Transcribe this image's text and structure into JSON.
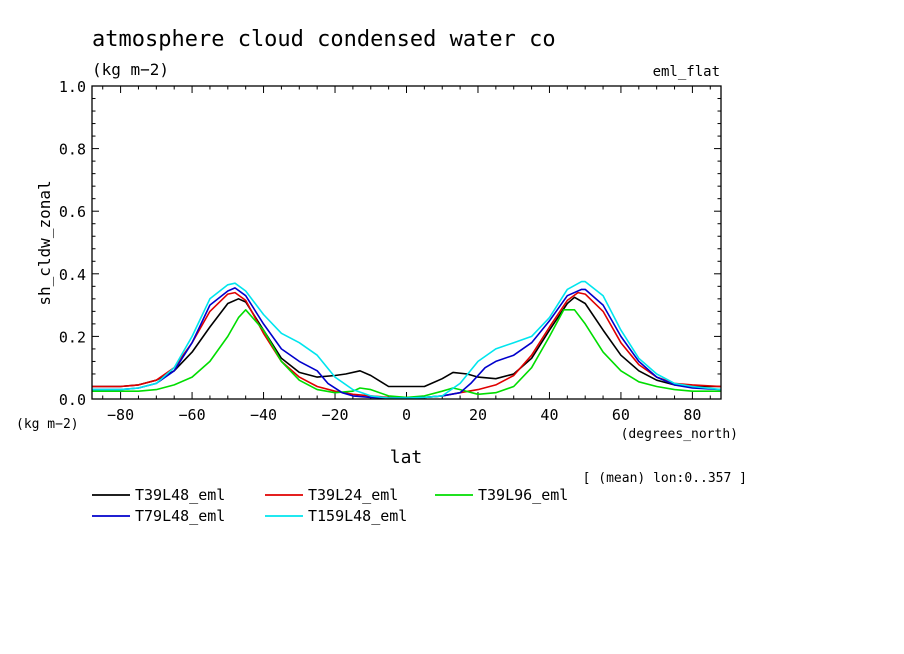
{
  "header": {
    "title": "atmosphere cloud condensed water co",
    "units": "(kg m−2)",
    "tag": "eml_flat",
    "y_units": "(kg m−2)",
    "x_units": "(degrees_north)",
    "footnote": "[ (mean) lon:0..357 ]"
  },
  "chart_data": {
    "type": "line",
    "title": "atmosphere cloud condensed water co",
    "xlabel": "lat",
    "ylabel": "sh_cldw_zonal",
    "xlim": [
      -88,
      88
    ],
    "ylim": [
      0,
      1.0
    ],
    "xticks": [
      -80,
      -60,
      -40,
      -20,
      0,
      20,
      40,
      60,
      80
    ],
    "yticks": [
      0.0,
      0.2,
      0.4,
      0.6,
      0.8,
      1.0
    ],
    "xtick_labels": [
      "−80",
      "−60",
      "−40",
      "−20",
      "0",
      "20",
      "40",
      "60",
      "80"
    ],
    "ytick_labels": [
      "0.0",
      "0.2",
      "0.4",
      "0.6",
      "0.8",
      "1.0"
    ],
    "grid": false,
    "legend_position": "bottom-left",
    "series": [
      {
        "name": "T39L48_eml",
        "color": "#000000",
        "x": [
          -88,
          -80,
          -75,
          -70,
          -65,
          -60,
          -55,
          -50,
          -47,
          -45,
          -40,
          -35,
          -30,
          -25,
          -20,
          -17,
          -13,
          -10,
          -5,
          0,
          5,
          10,
          13,
          17,
          20,
          25,
          30,
          35,
          40,
          45,
          47,
          50,
          55,
          60,
          65,
          70,
          75,
          80,
          88
        ],
        "y": [
          0.04,
          0.04,
          0.045,
          0.06,
          0.09,
          0.15,
          0.23,
          0.305,
          0.32,
          0.31,
          0.22,
          0.13,
          0.085,
          0.07,
          0.075,
          0.08,
          0.09,
          0.075,
          0.04,
          0.04,
          0.04,
          0.065,
          0.085,
          0.08,
          0.07,
          0.065,
          0.08,
          0.13,
          0.22,
          0.305,
          0.325,
          0.305,
          0.22,
          0.14,
          0.09,
          0.06,
          0.045,
          0.04,
          0.04
        ]
      },
      {
        "name": "T39L24_eml",
        "color": "#e00000",
        "x": [
          -88,
          -80,
          -75,
          -70,
          -65,
          -60,
          -55,
          -50,
          -48,
          -45,
          -40,
          -35,
          -30,
          -25,
          -20,
          -15,
          -10,
          -5,
          0,
          5,
          10,
          15,
          20,
          25,
          30,
          35,
          40,
          45,
          48,
          50,
          55,
          60,
          65,
          70,
          75,
          80,
          88
        ],
        "y": [
          0.04,
          0.04,
          0.045,
          0.06,
          0.1,
          0.18,
          0.28,
          0.335,
          0.34,
          0.315,
          0.21,
          0.12,
          0.07,
          0.04,
          0.025,
          0.015,
          0.01,
          0.005,
          0.005,
          0.005,
          0.01,
          0.02,
          0.03,
          0.045,
          0.075,
          0.14,
          0.23,
          0.315,
          0.34,
          0.335,
          0.28,
          0.18,
          0.11,
          0.07,
          0.05,
          0.045,
          0.04
        ]
      },
      {
        "name": "T39L96_eml",
        "color": "#00dd00",
        "x": [
          -88,
          -80,
          -75,
          -70,
          -65,
          -60,
          -55,
          -50,
          -47,
          -45,
          -40,
          -35,
          -30,
          -25,
          -20,
          -15,
          -13,
          -10,
          -5,
          0,
          5,
          10,
          13,
          15,
          20,
          25,
          30,
          35,
          40,
          44,
          47,
          50,
          55,
          60,
          65,
          70,
          75,
          80,
          88
        ],
        "y": [
          0.025,
          0.025,
          0.025,
          0.03,
          0.045,
          0.07,
          0.12,
          0.2,
          0.26,
          0.285,
          0.22,
          0.12,
          0.06,
          0.03,
          0.02,
          0.025,
          0.035,
          0.03,
          0.01,
          0.005,
          0.01,
          0.025,
          0.035,
          0.03,
          0.015,
          0.02,
          0.04,
          0.1,
          0.2,
          0.285,
          0.285,
          0.24,
          0.15,
          0.09,
          0.055,
          0.04,
          0.03,
          0.025,
          0.025
        ]
      },
      {
        "name": "T79L48_eml",
        "color": "#0000cc",
        "x": [
          -88,
          -80,
          -75,
          -70,
          -65,
          -60,
          -55,
          -50,
          -48,
          -45,
          -40,
          -35,
          -30,
          -25,
          -22,
          -18,
          -15,
          -10,
          -5,
          0,
          5,
          10,
          15,
          18,
          22,
          25,
          30,
          35,
          40,
          45,
          49,
          50,
          55,
          60,
          65,
          70,
          75,
          80,
          88
        ],
        "y": [
          0.03,
          0.03,
          0.035,
          0.05,
          0.09,
          0.18,
          0.3,
          0.345,
          0.355,
          0.33,
          0.24,
          0.16,
          0.12,
          0.09,
          0.05,
          0.02,
          0.01,
          0.005,
          0.003,
          0.003,
          0.005,
          0.01,
          0.02,
          0.05,
          0.1,
          0.12,
          0.14,
          0.18,
          0.25,
          0.33,
          0.35,
          0.35,
          0.3,
          0.2,
          0.12,
          0.07,
          0.045,
          0.035,
          0.03
        ]
      },
      {
        "name": "T159L48_eml",
        "color": "#00e5ee",
        "x": [
          -88,
          -80,
          -75,
          -70,
          -65,
          -60,
          -55,
          -50,
          -48,
          -45,
          -40,
          -35,
          -30,
          -25,
          -20,
          -15,
          -10,
          -5,
          0,
          5,
          10,
          15,
          20,
          25,
          30,
          35,
          40,
          45,
          49,
          50,
          55,
          60,
          65,
          70,
          75,
          80,
          88
        ],
        "y": [
          0.03,
          0.03,
          0.035,
          0.05,
          0.1,
          0.2,
          0.32,
          0.365,
          0.37,
          0.345,
          0.27,
          0.21,
          0.18,
          0.14,
          0.07,
          0.03,
          0.01,
          0.003,
          0.003,
          0.005,
          0.01,
          0.05,
          0.12,
          0.16,
          0.18,
          0.2,
          0.26,
          0.35,
          0.375,
          0.375,
          0.33,
          0.22,
          0.13,
          0.08,
          0.05,
          0.04,
          0.03
        ]
      }
    ]
  }
}
